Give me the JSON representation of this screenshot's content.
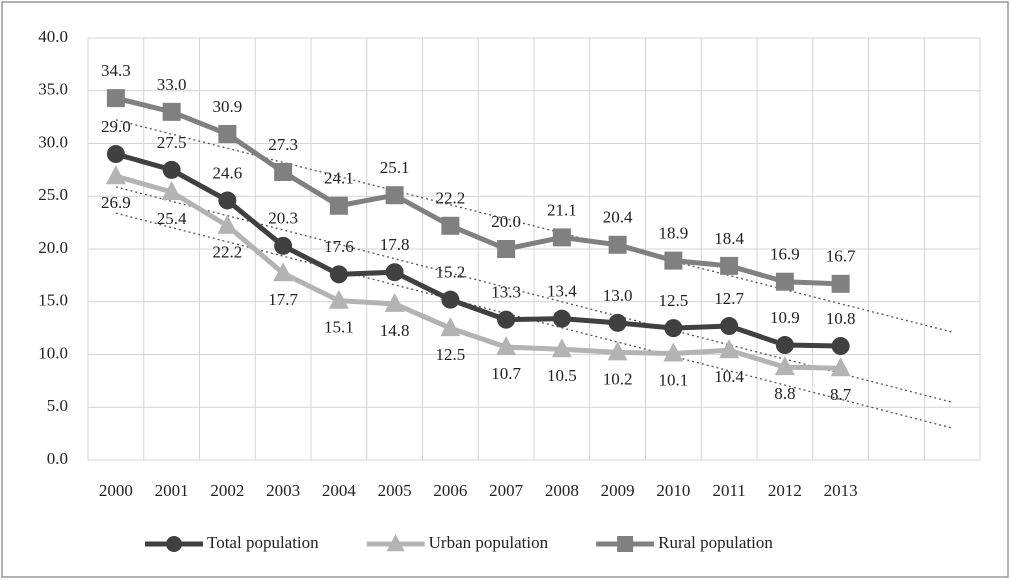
{
  "chart_data": {
    "type": "line",
    "categories": [
      "2000",
      "2001",
      "2002",
      "2003",
      "2004",
      "2005",
      "2006",
      "2007",
      "2008",
      "2009",
      "2010",
      "2011",
      "2012",
      "2013",
      null,
      null
    ],
    "series": [
      {
        "name": "Total population",
        "color": "#404040",
        "marker": "circle",
        "label_pos": "above",
        "values": [
          29.0,
          27.5,
          24.6,
          20.3,
          17.6,
          17.8,
          15.2,
          13.3,
          13.4,
          13.0,
          12.5,
          12.7,
          10.9,
          10.8,
          null,
          null
        ],
        "value_labels": [
          "29.0",
          "27.5",
          "24.6",
          "20.3",
          "17.6",
          "17.8",
          "15.2",
          "13.3",
          "13.4",
          "13.0",
          "12.5",
          "12.7",
          "10.9",
          "10.8",
          null,
          null
        ]
      },
      {
        "name": "Urban population",
        "color": "#b3b3b3",
        "marker": "triangle",
        "label_pos": "below",
        "values": [
          26.9,
          25.4,
          22.2,
          17.7,
          15.1,
          14.8,
          12.5,
          10.7,
          10.5,
          10.2,
          10.1,
          10.4,
          8.8,
          8.7,
          null,
          null
        ],
        "value_labels": [
          "26.9",
          "25.4",
          "22.2",
          "17.7",
          "15.1",
          "14.8",
          "12.5",
          "10.7",
          "10.5",
          "10.2",
          "10.1",
          "10.4",
          "8.8",
          "8.7",
          null,
          null
        ]
      },
      {
        "name": "Rural population",
        "color": "#808080",
        "marker": "square",
        "label_pos": "above",
        "values": [
          34.3,
          33.0,
          30.9,
          27.3,
          24.1,
          25.1,
          22.2,
          20.0,
          21.1,
          20.4,
          18.9,
          18.4,
          16.9,
          16.7,
          null,
          null
        ],
        "value_labels": [
          "34.3",
          "33.0",
          "30.9",
          "27.3",
          "24.1",
          "25.1",
          "22.2",
          "20.0",
          "21.1",
          "20.4",
          "18.9",
          "18.4",
          "16.9",
          "16.7",
          null,
          null
        ]
      }
    ],
    "ylim": [
      0,
      40
    ],
    "yticks": [
      {
        "value": 0,
        "label": "0.0"
      },
      {
        "value": 5,
        "label": "5.0"
      },
      {
        "value": 10,
        "label": "10.0"
      },
      {
        "value": 15,
        "label": "15.0"
      },
      {
        "value": 20,
        "label": "20.0"
      },
      {
        "value": 25,
        "label": "25.0"
      },
      {
        "value": 30,
        "label": "30.0"
      },
      {
        "value": 35,
        "label": "35.0"
      },
      {
        "value": 40,
        "label": "40.0"
      }
    ],
    "grid": true,
    "trendline": true,
    "legend": "bottom"
  }
}
